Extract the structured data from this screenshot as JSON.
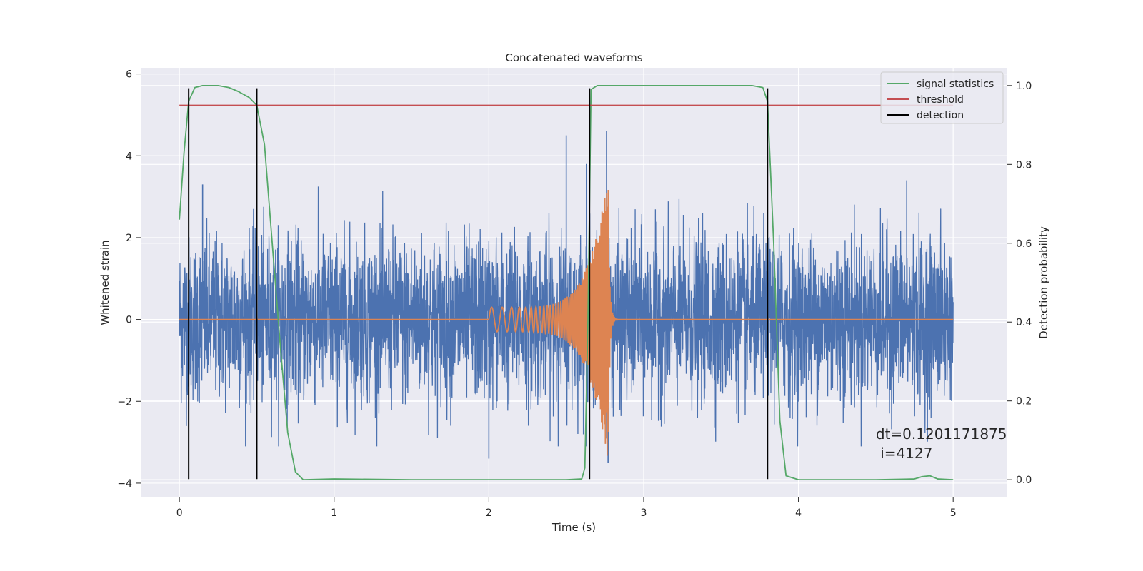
{
  "chart_data": {
    "type": "line",
    "title": "Concatenated waveforms",
    "xlabel": "Time (s)",
    "ylabel": "Whitened strain",
    "y2label": "Detection probability",
    "xlim": [
      -0.25,
      5.35
    ],
    "ylim": [
      -4.35,
      6.15
    ],
    "y2lim": [
      -0.045,
      1.045
    ],
    "xticks": [
      0,
      1,
      2,
      3,
      4,
      5
    ],
    "yticks": [
      -4,
      -2,
      0,
      2,
      4,
      6
    ],
    "y2ticks": [
      0.0,
      0.2,
      0.4,
      0.6,
      0.8,
      1.0
    ],
    "xtick_labels": [
      "0",
      "1",
      "2",
      "3",
      "4",
      "5"
    ],
    "ytick_labels": [
      "−4",
      "−2",
      "0",
      "2",
      "4",
      "6"
    ],
    "y2tick_labels": [
      "0.0",
      "0.2",
      "0.4",
      "0.6",
      "0.8",
      "1.0"
    ],
    "grid": true,
    "legend_position": "top-right",
    "legend": [
      {
        "label": "signal statistics",
        "color": "#55a868"
      },
      {
        "label": "threshold",
        "color": "#c44e52"
      },
      {
        "label": "detection",
        "color": "#000000"
      }
    ],
    "colors": {
      "noise": "#4c72b0",
      "waveform": "#dd8452",
      "statistics": "#55a868",
      "threshold": "#c44e52",
      "detection": "#000000",
      "axes_background": "#eaeaf2",
      "grid": "#ffffff"
    },
    "series": [
      {
        "axis": "left",
        "kind": "noise",
        "x_range": [
          0,
          5
        ],
        "typical_amplitude": 1.6,
        "peaks": [
          {
            "x": 2.5,
            "y": 4.5
          },
          {
            "x": 2.76,
            "y": 4.6
          },
          {
            "x": 2.77,
            "y": -3.5
          },
          {
            "x": 0.15,
            "y": 3.3
          },
          {
            "x": 4.7,
            "y": 3.4
          },
          {
            "x": 2.63,
            "y": 3.8
          },
          {
            "x": 2.0,
            "y": -3.4
          }
        ]
      },
      {
        "axis": "left",
        "kind": "chirp",
        "x_range": [
          0,
          5
        ],
        "chirp_start": 2.0,
        "merger": 2.77,
        "amplitude_start": 0.3,
        "amplitude_peak": 3.5
      },
      {
        "axis": "right",
        "name": "signal statistics",
        "x": [
          0,
          0.03,
          0.06,
          0.1,
          0.15,
          0.25,
          0.32,
          0.38,
          0.45,
          0.5,
          0.55,
          0.6,
          0.65,
          0.7,
          0.75,
          0.8,
          1.0,
          1.5,
          2.0,
          2.5,
          2.6,
          2.62,
          2.64,
          2.66,
          2.7,
          3.0,
          3.5,
          3.7,
          3.77,
          3.8,
          3.84,
          3.88,
          3.92,
          4.0,
          4.5,
          4.75,
          4.8,
          4.85,
          4.9,
          5.0
        ],
        "y": [
          0.66,
          0.83,
          0.96,
          0.995,
          1.0,
          1.0,
          0.995,
          0.985,
          0.97,
          0.95,
          0.85,
          0.6,
          0.35,
          0.12,
          0.02,
          0.0,
          0.002,
          0.0,
          0.0,
          0.0,
          0.002,
          0.03,
          0.4,
          0.99,
          1.0,
          1.0,
          1.0,
          1.0,
          0.995,
          0.96,
          0.6,
          0.15,
          0.01,
          0.0,
          0.0,
          0.002,
          0.008,
          0.01,
          0.002,
          0.0
        ]
      },
      {
        "axis": "right",
        "name": "threshold",
        "x": [
          0,
          5
        ],
        "y": [
          0.95,
          0.95
        ]
      },
      {
        "axis": "left",
        "name": "detection",
        "x": [
          0.06,
          0.5,
          2.65,
          3.8
        ],
        "ymin": -3.9,
        "ymax": 5.65
      }
    ],
    "annotation": {
      "lines": [
        "dt=0.1201171875",
        " i=4127"
      ],
      "x": 4.5,
      "y": -2.8
    }
  }
}
